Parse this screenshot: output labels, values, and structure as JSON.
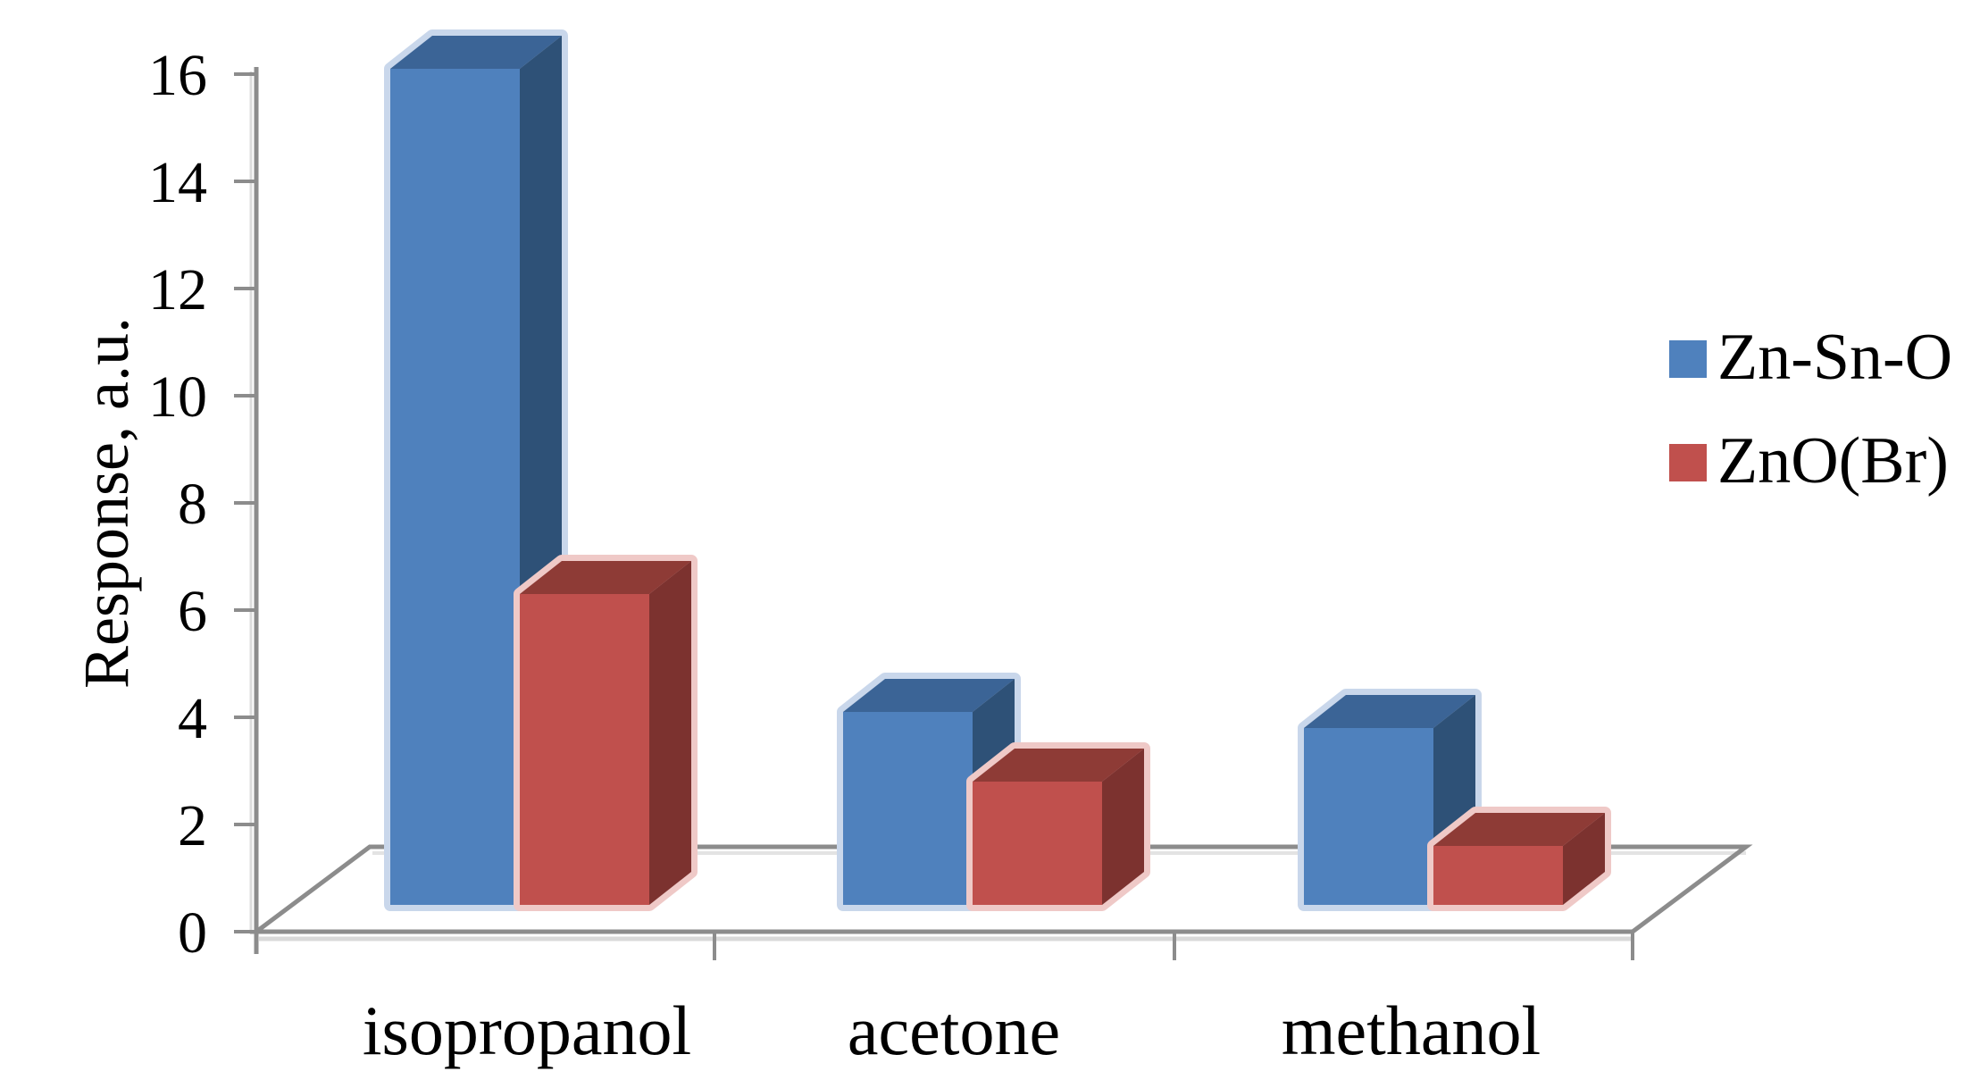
{
  "chart_data": {
    "type": "bar",
    "projection": "3d-clustered-column",
    "title": "",
    "categories": [
      "isopropanol",
      "acetone",
      "methanol"
    ],
    "series": [
      {
        "name": "Zn-Sn-O",
        "values": [
          15.6,
          3.6,
          3.3
        ],
        "color": "#4F81BD",
        "color_top": "#3B6496",
        "color_side": "#2E5177",
        "color_halo": "#C9D7EB"
      },
      {
        "name": "ZnO(Br)",
        "values": [
          5.8,
          2.3,
          1.1
        ],
        "color": "#C0504D",
        "color_top": "#8E3B36",
        "color_side": "#7C322F",
        "color_halo": "#EFC9C7"
      }
    ],
    "xlabel": "",
    "ylabel": "Response, a.u.",
    "ylim": [
      0,
      16
    ],
    "yticks": [
      0,
      2,
      4,
      6,
      8,
      10,
      12,
      14,
      16
    ],
    "grid": false,
    "legend_position": "right",
    "axis_color": "#8C8C8C",
    "axis_echo_color": "#DCDCDC",
    "text_color": "#000000",
    "background": "#FFFFFF"
  }
}
